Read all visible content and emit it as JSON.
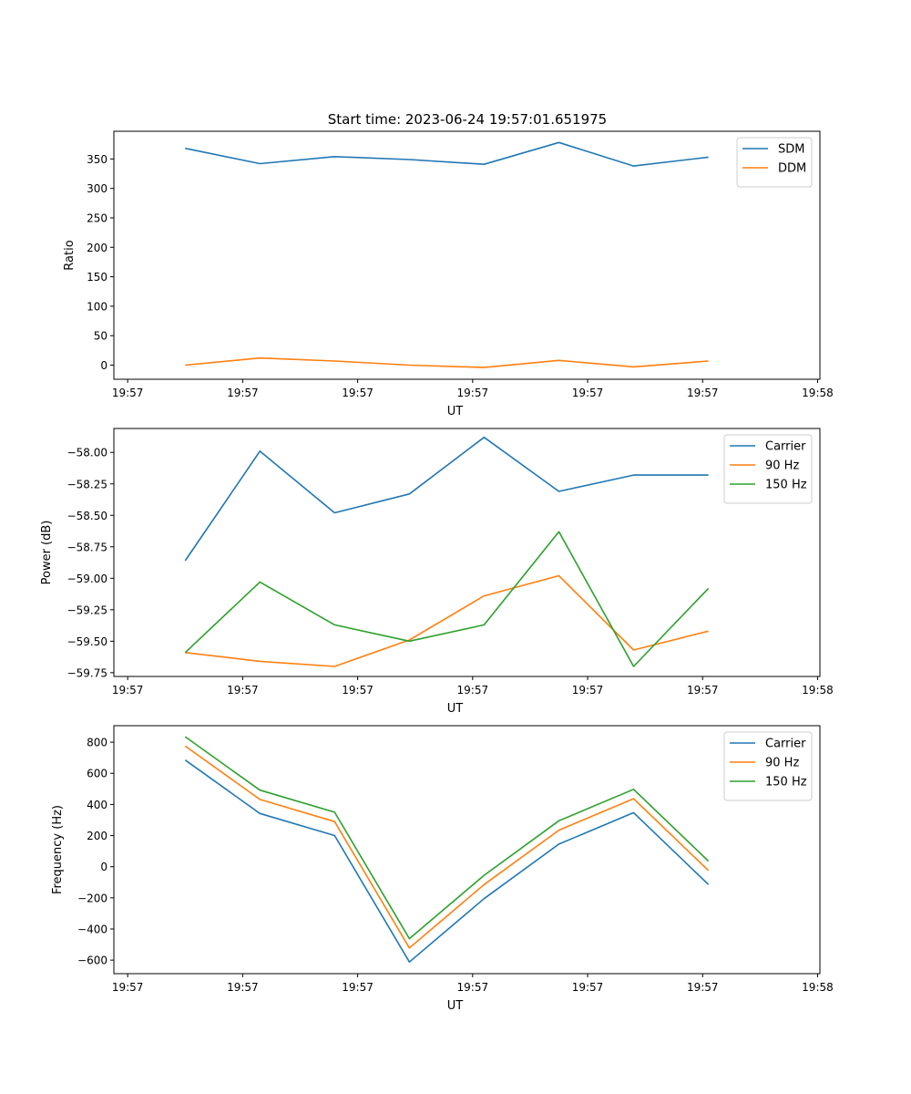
{
  "figure": {
    "title": "Start time: 2023-06-24 19:57:01.651975"
  },
  "chart_data": [
    {
      "type": "line",
      "xlabel": "UT",
      "ylabel": "Ratio",
      "x_tick_labels": [
        "19:57",
        "19:57",
        "19:57",
        "19:57",
        "19:57",
        "19:57",
        "19:58"
      ],
      "x_ticks": [
        0,
        10,
        20,
        30,
        40,
        50,
        60
      ],
      "xlim": [
        -1.2,
        60.2
      ],
      "x": [
        5,
        11.5,
        18,
        24.5,
        31,
        37.5,
        44,
        50.5
      ],
      "ylim": [
        -24,
        397
      ],
      "yticks": [
        0,
        50,
        100,
        150,
        200,
        250,
        300,
        350
      ],
      "legend": "top-right",
      "series": [
        {
          "name": "SDM",
          "color": "#1f77b4",
          "values": [
            368,
            342,
            354,
            349,
            341,
            378,
            338,
            353
          ]
        },
        {
          "name": "DDM",
          "color": "#ff7f0e",
          "values": [
            0,
            12,
            7,
            0,
            -4,
            8,
            -3,
            7
          ]
        }
      ]
    },
    {
      "type": "line",
      "xlabel": "UT",
      "ylabel": "Power (dB)",
      "x_tick_labels": [
        "19:57",
        "19:57",
        "19:57",
        "19:57",
        "19:57",
        "19:57",
        "19:58"
      ],
      "x_ticks": [
        0,
        10,
        20,
        30,
        40,
        50,
        60
      ],
      "xlim": [
        -1.2,
        60.2
      ],
      "x": [
        5,
        11.5,
        18,
        24.5,
        31,
        37.5,
        44,
        50.5
      ],
      "ylim": [
        -59.78,
        -57.81
      ],
      "yticks": [
        -58.0,
        -58.25,
        -58.5,
        -58.75,
        -59.0,
        -59.25,
        -59.5,
        -59.75
      ],
      "ytick_labels": [
        "−58.00",
        "−58.25",
        "−58.50",
        "−58.75",
        "−59.00",
        "−59.25",
        "−59.50",
        "−59.75"
      ],
      "legend": "top-right",
      "series": [
        {
          "name": "Carrier",
          "color": "#1f77b4",
          "values": [
            -58.86,
            -57.99,
            -58.48,
            -58.33,
            -57.88,
            -58.31,
            -58.18,
            -58.18
          ]
        },
        {
          "name": "90 Hz",
          "color": "#ff7f0e",
          "values": [
            -59.59,
            -59.66,
            -59.7,
            -59.49,
            -59.14,
            -58.98,
            -59.57,
            -59.42
          ]
        },
        {
          "name": "150 Hz",
          "color": "#2ca02c",
          "values": [
            -59.59,
            -59.03,
            -59.37,
            -59.5,
            -59.37,
            -58.63,
            -59.7,
            -59.08
          ]
        }
      ]
    },
    {
      "type": "line",
      "xlabel": "UT",
      "ylabel": "Frequency (Hz)",
      "x_tick_labels": [
        "19:57",
        "19:57",
        "19:57",
        "19:57",
        "19:57",
        "19:57",
        "19:58"
      ],
      "x_ticks": [
        0,
        10,
        20,
        30,
        40,
        50,
        60
      ],
      "xlim": [
        -1.2,
        60.2
      ],
      "x": [
        5,
        11.5,
        18,
        24.5,
        31,
        37.5,
        44,
        50.5
      ],
      "ylim": [
        -687,
        906
      ],
      "yticks": [
        800,
        600,
        400,
        200,
        0,
        -200,
        -400,
        -600
      ],
      "ytick_labels": [
        "800",
        "600",
        "400",
        "200",
        "0",
        "−200",
        "−400",
        "−600"
      ],
      "legend": "top-right",
      "series": [
        {
          "name": "Carrier",
          "color": "#1f77b4",
          "values": [
            685,
            342,
            200,
            -612,
            -205,
            145,
            347,
            -114
          ]
        },
        {
          "name": "90 Hz",
          "color": "#ff7f0e",
          "values": [
            775,
            432,
            290,
            -522,
            -115,
            235,
            437,
            -24
          ]
        },
        {
          "name": "150 Hz",
          "color": "#2ca02c",
          "values": [
            835,
            492,
            350,
            -462,
            -55,
            295,
            497,
            36
          ]
        }
      ]
    }
  ]
}
